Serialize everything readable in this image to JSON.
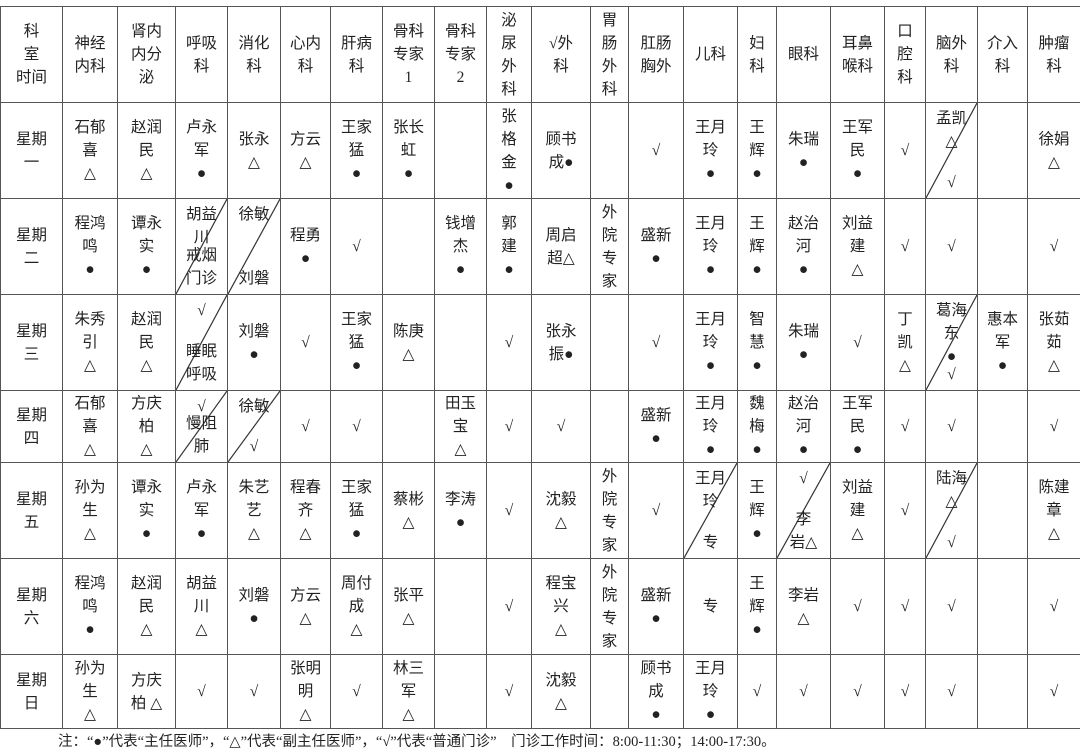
{
  "header": [
    "科\n室\n时间",
    "神经\n内科",
    "肾内\n内分\n泌",
    "呼吸\n科",
    "消化\n科",
    "心内\n科",
    "肝病\n科",
    "骨科\n专家\n1",
    "骨科\n专家\n2",
    "泌\n尿\n外\n科",
    "√外\n科",
    "胃\n肠\n外\n科",
    "肛肠\n胸外",
    "儿科",
    "妇\n科",
    "眼科",
    "耳鼻\n喉科",
    "口\n腔\n科",
    "脑外\n科",
    "介入\n科",
    "肿瘤\n科"
  ],
  "rows": [
    [
      "星期\n一",
      "石郁\n喜\n△",
      "赵润\n民\n△",
      "卢永\n军\n●",
      "张永\n△",
      "方云\n△",
      "王家\n猛\n●",
      "张长\n虹\n●",
      "",
      "张\n格\n金\n●",
      "顾书\n成●",
      "",
      "√",
      "王月\n玲\n●",
      "王\n辉\n●",
      "朱瑞\n●",
      "王军\n民\n●",
      "√",
      {
        "top": "孟凯\n△",
        "bottom": "√"
      },
      "",
      "徐娟\n△"
    ],
    [
      "星期\n二",
      "程鸿\n鸣\n●",
      "谭永\n实\n●",
      {
        "top": "胡益\n川",
        "bottom": "戒烟\n门诊"
      },
      {
        "top": "徐敏",
        "bottom": "刘磐"
      },
      "程勇\n●",
      "√",
      "",
      "钱增\n杰\n●",
      "郭\n建\n●",
      "周启\n超△",
      "外\n院\n专\n家",
      "盛新\n●",
      "王月\n玲\n●",
      "王\n辉\n●",
      "赵治\n河\n●",
      "刘益\n建\n△",
      "√",
      "√",
      "",
      "√"
    ],
    [
      "星期\n三",
      "朱秀\n引\n△",
      "赵润\n民\n△",
      {
        "top": "√",
        "bottom": "睡眠\n呼吸"
      },
      "刘磐\n●",
      "√",
      "王家\n猛\n●",
      "陈庚\n△",
      "",
      "√",
      "张永\n振●",
      "",
      "√",
      "王月\n玲\n●",
      "智\n慧\n●",
      "朱瑞\n●",
      "√",
      "丁\n凯\n△",
      {
        "top": "葛海\n东\n●",
        "bottom": "√"
      },
      "惠本\n军\n●",
      "张茹\n茹\n△"
    ],
    [
      "星期\n四",
      "石郁\n喜\n△",
      "方庆\n柏\n△",
      {
        "top": "√",
        "bottom": "慢阻\n肺"
      },
      {
        "top": "徐敏",
        "bottom": "√"
      },
      "√",
      "√",
      "",
      "田玉\n宝\n△",
      "√",
      "√",
      "",
      "盛新\n●",
      "王月\n玲\n●",
      "魏\n梅\n●",
      "赵治\n河\n●",
      "王军\n民\n●",
      "√",
      "√",
      "",
      "√"
    ],
    [
      "星期\n五",
      "孙为\n生\n△",
      "谭永\n实\n●",
      "卢永\n军\n●",
      "朱艺\n艺\n△",
      "程春\n齐\n△",
      "王家\n猛\n●",
      "蔡彬\n△",
      "李涛\n●",
      "√",
      "沈毅\n△",
      "外\n院\n专\n家",
      "√",
      {
        "top": "王月\n玲",
        "bottom": "专"
      },
      "王\n辉\n●",
      {
        "top": "√",
        "bottom": "李\n岩△"
      },
      "刘益\n建\n△",
      "√",
      {
        "top": "陆海\n△",
        "bottom": "√"
      },
      "",
      "陈建\n章\n△"
    ],
    [
      "星期\n六",
      "程鸿\n鸣\n●",
      "赵润\n民\n△",
      "胡益\n川\n△",
      "刘磐\n●",
      "方云\n△",
      "周付\n成\n△",
      "张平\n△",
      "",
      "√",
      "程宝\n兴\n△",
      "外\n院\n专\n家",
      "盛新\n●",
      "专",
      "王\n辉\n●",
      "李岩\n△",
      "√",
      "√",
      "√",
      "",
      "√"
    ],
    [
      "星期\n日",
      "孙为\n生\n△",
      "方庆\n柏 △",
      "√",
      "√",
      "张明\n明\n△",
      "√",
      "林三\n军\n△",
      "",
      "√",
      "沈毅\n△",
      "",
      "顾书\n成\n●",
      "王月\n玲\n●",
      "√",
      "√",
      "√",
      "√",
      "√",
      "",
      "√"
    ]
  ],
  "note": "注：“●”代表“主任医师”，“△”代表“副主任医师”，“√”代表“普通门诊”    门诊工作时间：8:00-11:30；14:00-17:30。"
}
